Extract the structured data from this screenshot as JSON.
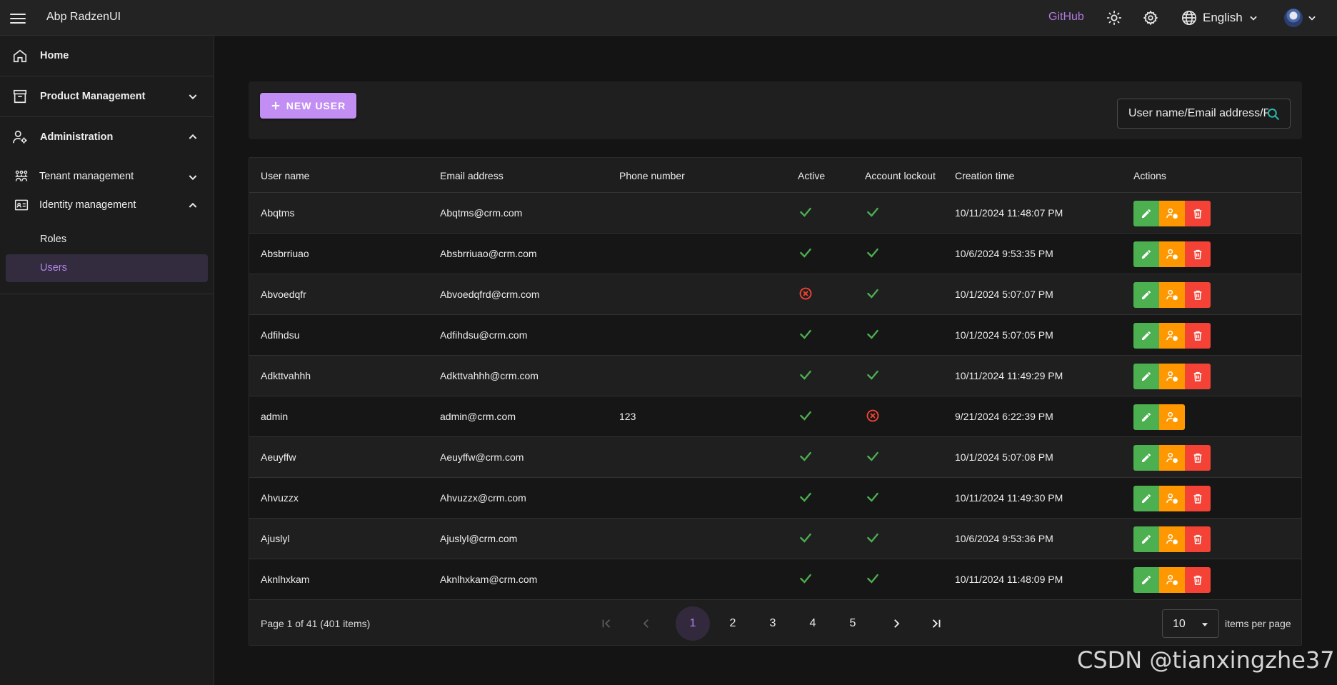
{
  "header": {
    "menu_icon": "hamburger-icon",
    "app_title": "Abp RadzenUI",
    "github_label": "GitHub",
    "theme_icon": "sun-icon",
    "settings_icon": "gear-icon",
    "language_icon": "globe-icon",
    "language_label": "English",
    "user_icon": "avatar"
  },
  "sidebar": {
    "home": "Home",
    "product_management": "Product Management",
    "administration": "Administration",
    "tenant_management": "Tenant management",
    "identity_management": "Identity management",
    "roles": "Roles",
    "users": "Users",
    "active_item": "Users"
  },
  "toolbar": {
    "new_user_label": "NEW USER",
    "search_placeholder": "User name/Email address/Phone number"
  },
  "table": {
    "columns": [
      "User name",
      "Email address",
      "Phone number",
      "Active",
      "Account lockout",
      "Creation time",
      "Actions"
    ],
    "rows": [
      {
        "username": "Abqtms",
        "email": "Abqtms@crm.com",
        "phone": "",
        "active": true,
        "lockout": true,
        "created": "10/11/2024 11:48:07 PM",
        "deletable": true
      },
      {
        "username": "Absbrriuao",
        "email": "Absbrriuao@crm.com",
        "phone": "",
        "active": true,
        "lockout": true,
        "created": "10/6/2024 9:53:35 PM",
        "deletable": true
      },
      {
        "username": "Abvoedqfr",
        "email": "Abvoedqfrd@crm.com",
        "phone": "",
        "active": false,
        "lockout": true,
        "created": "10/1/2024 5:07:07 PM",
        "deletable": true
      },
      {
        "username": "Adfihdsu",
        "email": "Adfihdsu@crm.com",
        "phone": "",
        "active": true,
        "lockout": true,
        "created": "10/1/2024 5:07:05 PM",
        "deletable": true
      },
      {
        "username": "Adkttvahhh",
        "email": "Adkttvahhh@crm.com",
        "phone": "",
        "active": true,
        "lockout": true,
        "created": "10/11/2024 11:49:29 PM",
        "deletable": true
      },
      {
        "username": "admin",
        "email": "admin@crm.com",
        "phone": "123",
        "active": true,
        "lockout": false,
        "created": "9/21/2024 6:22:39 PM",
        "deletable": false
      },
      {
        "username": "Aeuyffw",
        "email": "Aeuyffw@crm.com",
        "phone": "",
        "active": true,
        "lockout": true,
        "created": "10/1/2024 5:07:08 PM",
        "deletable": true
      },
      {
        "username": "Ahvuzzx",
        "email": "Ahvuzzx@crm.com",
        "phone": "",
        "active": true,
        "lockout": true,
        "created": "10/11/2024 11:49:30 PM",
        "deletable": true
      },
      {
        "username": "Ajuslyl",
        "email": "Ajuslyl@crm.com",
        "phone": "",
        "active": true,
        "lockout": true,
        "created": "10/6/2024 9:53:36 PM",
        "deletable": true
      },
      {
        "username": "Aknlhxkam",
        "email": "Aknlhxkam@crm.com",
        "phone": "",
        "active": true,
        "lockout": true,
        "created": "10/11/2024 11:48:09 PM",
        "deletable": true
      }
    ]
  },
  "pager": {
    "summary": "Page 1 of 41 (401 items)",
    "pages": [
      "1",
      "2",
      "3",
      "4",
      "5"
    ],
    "current_page": "1",
    "page_size": "10",
    "page_size_label": "items per page"
  },
  "watermark": "CSDN @tianxingzhe37",
  "colors": {
    "accent": "#c28ef3",
    "accent_text": "#b483ec",
    "edit": "#4caf50",
    "roles": "#ff9800",
    "delete": "#f44336",
    "check": "#4caf50",
    "cross": "#f44336"
  }
}
